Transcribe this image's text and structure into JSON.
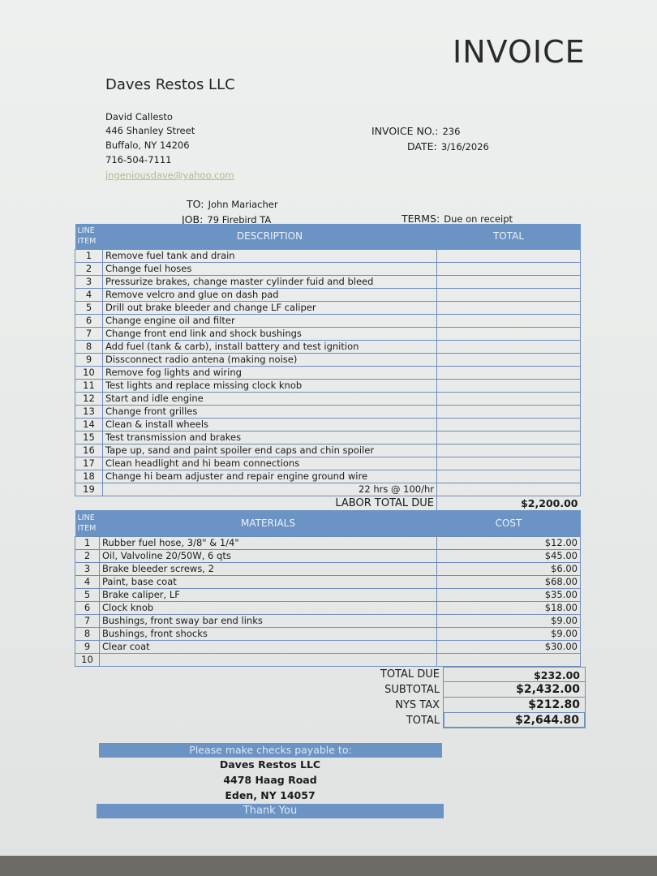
{
  "header": {
    "title": "INVOICE",
    "company": "Daves Restos LLC",
    "contact": {
      "name": "David Callesto",
      "street": "446 Shanley Street",
      "city": "Buffalo, NY 14206",
      "phone": "716-504-7111",
      "email": "jngeniousdave@yahoo.com"
    },
    "invoice_no_label": "INVOICE NO.:",
    "invoice_no": "236",
    "date_label": "DATE:",
    "date": "3/16/2026",
    "to_label": "TO:",
    "to": "John Mariacher",
    "job_label": "JOB:",
    "job": "79 Firebird TA",
    "terms_label": "TERMS:",
    "terms": "Due on receipt"
  },
  "labor": {
    "col_line": [
      "LINE",
      "ITEM"
    ],
    "col_desc": "DESCRIPTION",
    "col_total": "TOTAL",
    "rows": [
      {
        "n": "1",
        "d": "Remove fuel tank and drain"
      },
      {
        "n": "2",
        "d": "Change fuel hoses"
      },
      {
        "n": "3",
        "d": "Pressurize brakes, change master cylinder fuid and bleed"
      },
      {
        "n": "4",
        "d": "Remove velcro and glue on dash pad"
      },
      {
        "n": "5",
        "d": "Drill out brake bleeder and change LF caliper"
      },
      {
        "n": "6",
        "d": "Change engine oil and filter"
      },
      {
        "n": "7",
        "d": "Change front end link and shock bushings"
      },
      {
        "n": "8",
        "d": "Add fuel (tank & carb), install battery and test ignition"
      },
      {
        "n": "9",
        "d": "Dissconnect radio antena (making noise)"
      },
      {
        "n": "10",
        "d": "Remove fog lights and wiring"
      },
      {
        "n": "11",
        "d": "Test lights and replace missing clock knob"
      },
      {
        "n": "12",
        "d": "Start and idle engine"
      },
      {
        "n": "13",
        "d": "Change front grilles"
      },
      {
        "n": "14",
        "d": "Clean & install wheels"
      },
      {
        "n": "15",
        "d": "Test transmission and brakes"
      },
      {
        "n": "16",
        "d": "Tape up, sand and paint spoiler end caps and chin spoiler"
      },
      {
        "n": "17",
        "d": "Clean headlight and hi beam connections"
      },
      {
        "n": "18",
        "d": "Change hi beam adjuster and repair engine ground wire"
      },
      {
        "n": "19",
        "d": "22 hrs @ 100/hr"
      }
    ],
    "total_label": "LABOR TOTAL DUE",
    "total": "$2,200.00"
  },
  "materials": {
    "col_line": [
      "LINE",
      "ITEM"
    ],
    "col_desc": "MATERIALS",
    "col_cost": "COST",
    "rows": [
      {
        "n": "1",
        "d": "Rubber fuel hose, 3/8\" & 1/4\"",
        "c": "$12.00"
      },
      {
        "n": "2",
        "d": "Oil, Valvoline 20/50W, 6 qts",
        "c": "$45.00"
      },
      {
        "n": "3",
        "d": "Brake bleeder screws, 2",
        "c": "$6.00"
      },
      {
        "n": "4",
        "d": "Paint, base coat",
        "c": "$68.00"
      },
      {
        "n": "5",
        "d": "Brake caliper, LF",
        "c": "$35.00"
      },
      {
        "n": "6",
        "d": "Clock knob",
        "c": "$18.00"
      },
      {
        "n": "7",
        "d": "Bushings, front sway bar end links",
        "c": "$9.00"
      },
      {
        "n": "8",
        "d": "Bushings, front shocks",
        "c": "$9.00"
      },
      {
        "n": "9",
        "d": "Clear coat",
        "c": "$30.00"
      },
      {
        "n": "10",
        "d": "",
        "c": ""
      }
    ]
  },
  "totals": [
    {
      "label": "TOTAL DUE",
      "value": "$232.00"
    },
    {
      "label": "SUBTOTAL",
      "value": "$2,432.00"
    },
    {
      "label": "NYS TAX",
      "value": "$212.80"
    },
    {
      "label": "TOTAL",
      "value": "$2,644.80"
    }
  ],
  "payment": {
    "heading": "Please make checks payable to:",
    "name": "Daves Restos LLC",
    "street": "4478 Haag Road",
    "city": "Eden, NY 14057",
    "footer": "Thank You"
  },
  "colors": {
    "accent": "#6b93c4",
    "grid": "#6f8db8"
  }
}
